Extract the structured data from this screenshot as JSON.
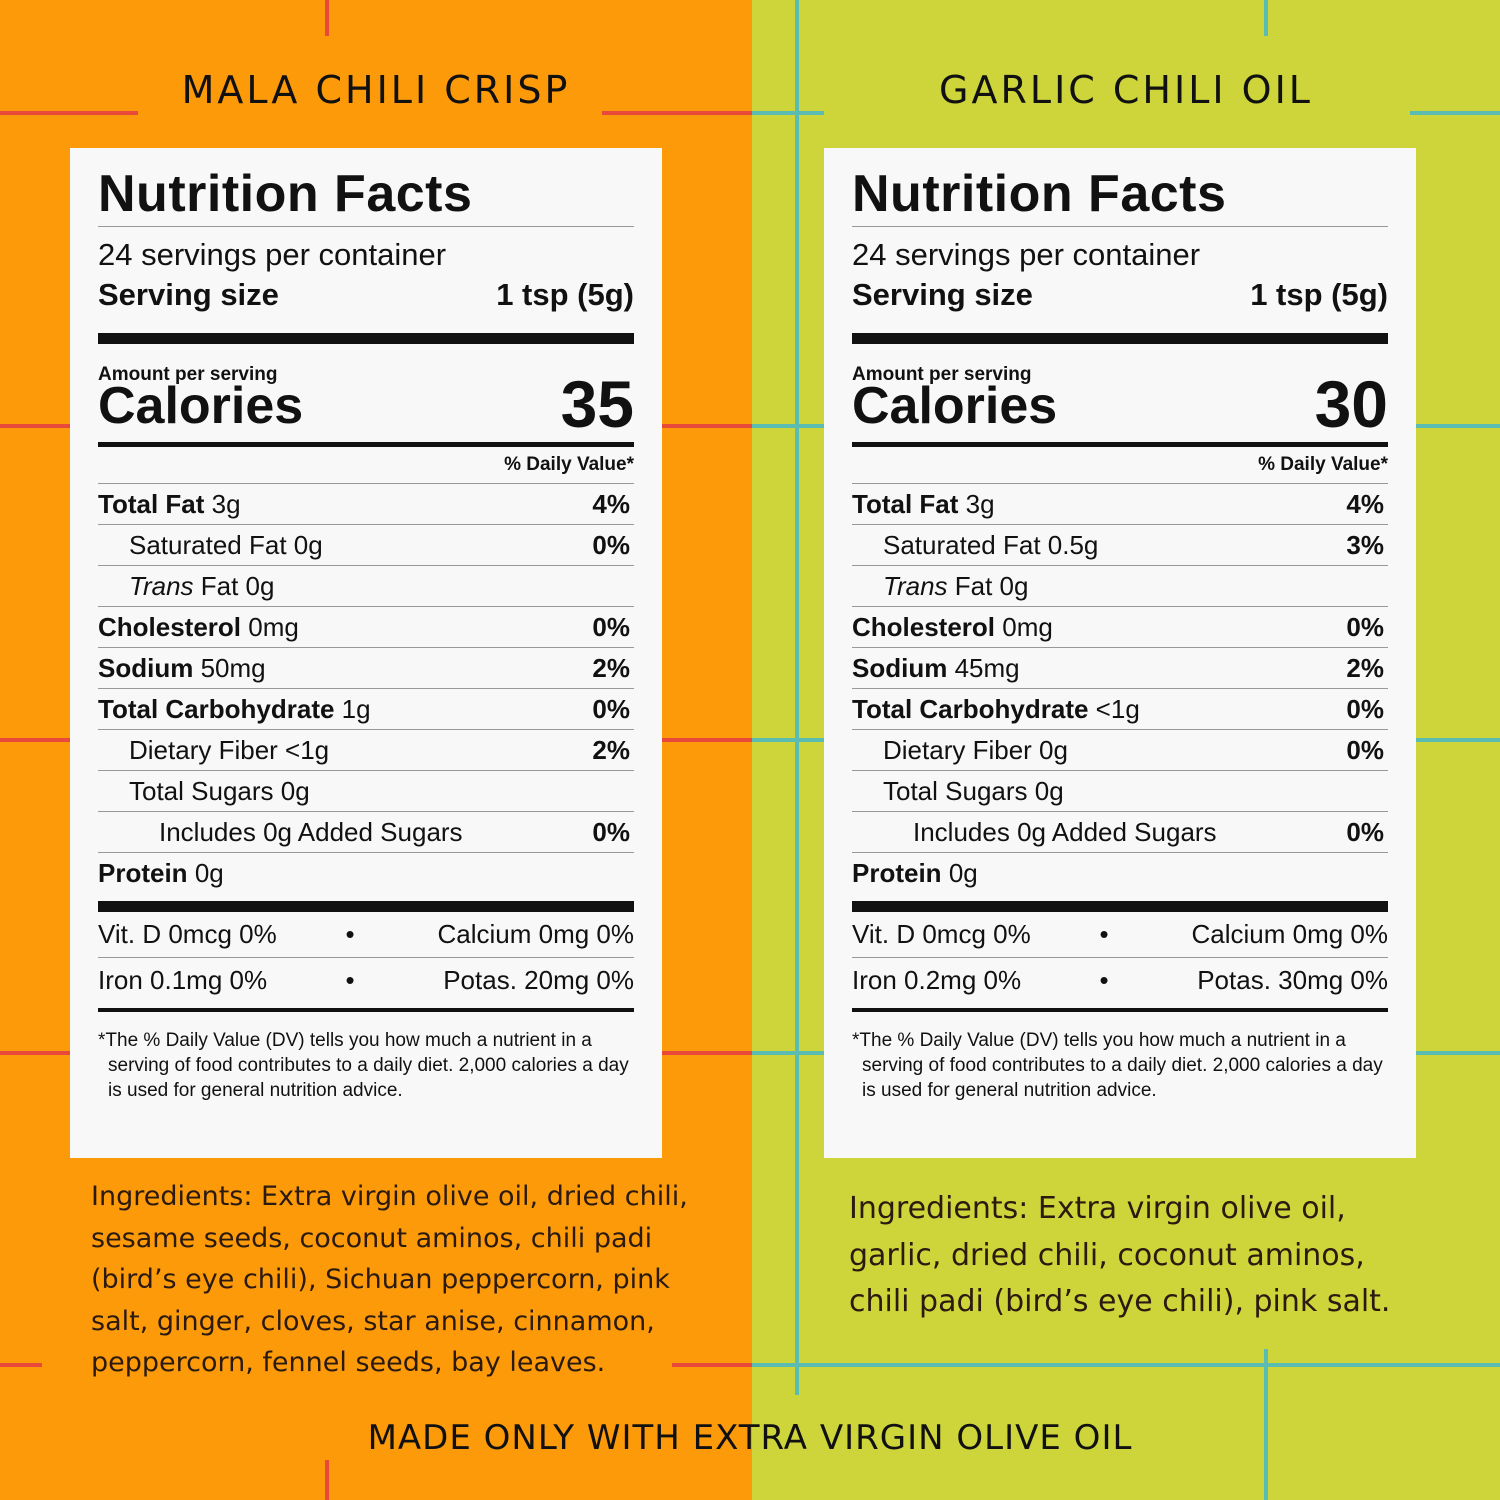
{
  "colors": {
    "left_bg": "#fd9a0a",
    "right_bg": "#cdd53a",
    "left_grid": "#e8493a",
    "right_grid": "#5bbcb1",
    "panel_bg": "#f8f8f9"
  },
  "products": [
    {
      "title": "MALA CHILI CRISP",
      "nf_title": "Nutrition Facts",
      "servings": "24 servings per container",
      "serving_size_label": "Serving size",
      "serving_size_value": "1 tsp (5g)",
      "amount_label": "Amount per serving",
      "calories_label": "Calories",
      "calories": "35",
      "dv_header": "% Daily Value*",
      "rows": {
        "total_fat": {
          "label": "Total Fat",
          "amount": "3g",
          "pct": "4%"
        },
        "sat_fat": {
          "label": "Saturated Fat 0g",
          "pct": "0%"
        },
        "trans_fat": {
          "label_italic": "Trans",
          "label_rest": "Fat 0g"
        },
        "cholesterol": {
          "label": "Cholesterol",
          "amount": "0mg",
          "pct": "0%"
        },
        "sodium": {
          "label": "Sodium",
          "amount": "50mg",
          "pct": "2%"
        },
        "carb": {
          "label": "Total Carbohydrate",
          "amount": "1g",
          "pct": "0%"
        },
        "fiber": {
          "label": "Dietary Fiber <1g",
          "pct": "2%"
        },
        "sugars": {
          "label": "Total Sugars 0g"
        },
        "added_sugars": {
          "label": "Includes 0g Added Sugars",
          "pct": "0%"
        },
        "protein": {
          "label": "Protein",
          "amount": "0g"
        }
      },
      "vitamins": {
        "vit_d": "Vit. D 0mcg 0%",
        "calcium": "Calcium 0mg 0%",
        "iron": "Iron 0.1mg 0%",
        "potassium": "Potas. 20mg 0%",
        "bullet": "•"
      },
      "footnote": "*The % Daily Value (DV) tells you how much a nutrient in a serving of food contributes to a daily diet. 2,000 calories a day is used for general nutrition advice.",
      "ingredients": "Ingredients: Extra virgin olive oil, dried chili, sesame seeds, coconut aminos, chili padi (bird’s eye chili), Sichuan peppercorn, pink salt, ginger, cloves, star anise, cinnamon, peppercorn, fennel seeds, bay leaves."
    },
    {
      "title": "GARLIC CHILI OIL",
      "nf_title": "Nutrition Facts",
      "servings": "24 servings per container",
      "serving_size_label": "Serving size",
      "serving_size_value": "1 tsp (5g)",
      "amount_label": "Amount per serving",
      "calories_label": "Calories",
      "calories": "30",
      "dv_header": "% Daily Value*",
      "rows": {
        "total_fat": {
          "label": "Total Fat",
          "amount": "3g",
          "pct": "4%"
        },
        "sat_fat": {
          "label": "Saturated Fat 0.5g",
          "pct": "3%"
        },
        "trans_fat": {
          "label_italic": "Trans",
          "label_rest": "Fat 0g"
        },
        "cholesterol": {
          "label": "Cholesterol",
          "amount": "0mg",
          "pct": "0%"
        },
        "sodium": {
          "label": "Sodium",
          "amount": "45mg",
          "pct": "2%"
        },
        "carb": {
          "label": "Total Carbohydrate",
          "amount": "<1g",
          "pct": "0%"
        },
        "fiber": {
          "label": "Dietary Fiber 0g",
          "pct": "0%"
        },
        "sugars": {
          "label": "Total Sugars 0g"
        },
        "added_sugars": {
          "label": "Includes 0g Added Sugars",
          "pct": "0%"
        },
        "protein": {
          "label": "Protein",
          "amount": "0g"
        }
      },
      "vitamins": {
        "vit_d": "Vit. D 0mcg 0%",
        "calcium": "Calcium 0mg 0%",
        "iron": "Iron 0.2mg 0%",
        "potassium": "Potas. 30mg 0%",
        "bullet": "•"
      },
      "footnote": "*The % Daily Value (DV) tells you how much a nutrient in a serving of food contributes to a daily diet. 2,000 calories a day is used for general nutrition advice.",
      "ingredients": "Ingredients: Extra virgin olive oil, garlic, dried chili, coconut aminos, chili padi (bird’s eye chili), pink salt."
    }
  ],
  "tagline": "MADE ONLY WITH EXTRA VIRGIN OLIVE OIL"
}
